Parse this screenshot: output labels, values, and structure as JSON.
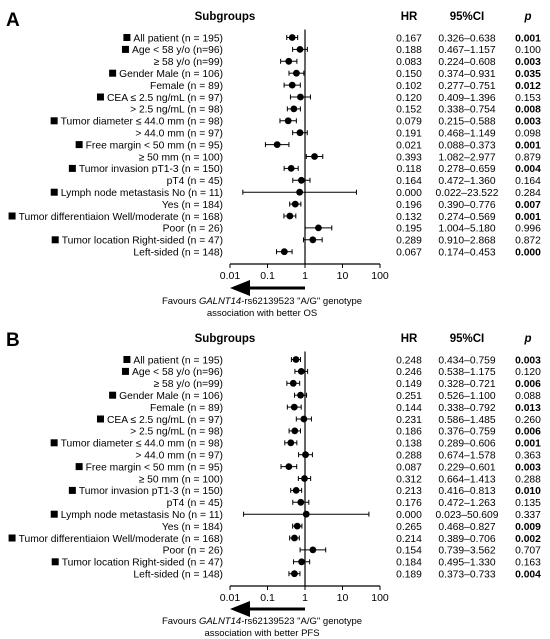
{
  "panels": [
    {
      "letter": "A",
      "header": {
        "subgroups": "Subgroups",
        "hr": "HR",
        "ci": "95%CI",
        "p": "p"
      },
      "favours_line1_prefix": "Favours ",
      "favours_gene": "GALNT14",
      "favours_line1_suffix": "-rs62139523  \"A/G\" genotype",
      "favours_line2": "association with better OS"
    },
    {
      "letter": "B",
      "header": {
        "subgroups": "Subgroups",
        "hr": "HR",
        "ci": "95%CI",
        "p": "p"
      },
      "favours_line1_prefix": "Favours ",
      "favours_gene": "GALNT14",
      "favours_line1_suffix": "-rs62139523  \"A/G\" genotype",
      "favours_line2": "association with better PFS"
    }
  ],
  "chart_data": [
    {
      "type": "forest",
      "xscale": "log",
      "xlim": [
        0.01,
        100
      ],
      "xticks": [
        "0.01",
        "0.1",
        "1",
        "10",
        "100"
      ],
      "reference_line": 1,
      "rows": [
        {
          "label": "All patient (n = 195)",
          "header": true,
          "hr": 0.167,
          "lo": 0.326,
          "hi": 0.638,
          "hr_text": "0.167",
          "ci_text": "0.326–0.638",
          "p": "0.001",
          "bold": true
        },
        {
          "label": "Age < 58 y/o (n=96)",
          "header": true,
          "hr": 0.188,
          "lo": 0.467,
          "hi": 1.157,
          "hr_text": "0.188",
          "ci_text": "0.467–1.157",
          "p": "0.100",
          "bold": false
        },
        {
          "label": "≥ 58 y/o (n=99)",
          "header": false,
          "hr": 0.083,
          "lo": 0.224,
          "hi": 0.608,
          "hr_text": "0.083",
          "ci_text": "0.224–0.608",
          "p": "0.003",
          "bold": true
        },
        {
          "label": "Gender Male (n = 106)",
          "header": true,
          "hr": 0.15,
          "lo": 0.374,
          "hi": 0.931,
          "hr_text": "0.150",
          "ci_text": "0.374–0.931",
          "p": "0.035",
          "bold": true
        },
        {
          "label": "Female (n = 89)",
          "header": false,
          "hr": 0.102,
          "lo": 0.277,
          "hi": 0.751,
          "hr_text": "0.102",
          "ci_text": "0.277–0.751",
          "p": "0.012",
          "bold": true
        },
        {
          "label": "CEA ≤ 2.5 ng/mL (n = 97)",
          "header": true,
          "hr": 0.12,
          "lo": 0.409,
          "hi": 1.396,
          "hr_text": "0.120",
          "ci_text": "0.409–1.396",
          "p": "0.153",
          "bold": false
        },
        {
          "label": "> 2.5 ng/mL (n = 98)",
          "header": false,
          "hr": 0.152,
          "lo": 0.338,
          "hi": 0.754,
          "hr_text": "0.152",
          "ci_text": "0.338–0.754",
          "p": "0.008",
          "bold": true
        },
        {
          "label": "Tumor diameter ≤ 44.0 mm (n = 98)",
          "header": true,
          "hr": 0.079,
          "lo": 0.215,
          "hi": 0.588,
          "hr_text": "0.079",
          "ci_text": "0.215–0.588",
          "p": "0.003",
          "bold": true
        },
        {
          "label": "> 44.0 mm (n = 97)",
          "header": false,
          "hr": 0.191,
          "lo": 0.468,
          "hi": 1.149,
          "hr_text": "0.191",
          "ci_text": "0.468–1.149",
          "p": "0.098",
          "bold": false
        },
        {
          "label": "Free margin < 50 mm (n = 95)",
          "header": true,
          "hr": 0.021,
          "lo": 0.088,
          "hi": 0.373,
          "hr_text": "0.021",
          "ci_text": "0.088–0.373",
          "p": "0.001",
          "bold": true
        },
        {
          "label": "≥ 50 mm (n = 100)",
          "header": false,
          "hr": 0.393,
          "lo": 1.082,
          "hi": 2.977,
          "hr_text": "0.393",
          "ci_text": "1.082–2.977",
          "p": "0.879",
          "bold": false
        },
        {
          "label": "Tumor invasion pT1-3 (n = 150)",
          "header": true,
          "hr": 0.118,
          "lo": 0.278,
          "hi": 0.659,
          "hr_text": "0.118",
          "ci_text": "0.278–0.659",
          "p": "0.004",
          "bold": true
        },
        {
          "label": "pT4 (n = 45)",
          "header": false,
          "hr": 0.164,
          "lo": 0.472,
          "hi": 1.36,
          "hr_text": "0.164",
          "ci_text": "0.472–1.360",
          "p": "0.164",
          "bold": false
        },
        {
          "label": "Lymph node metastasis No (n = 11)",
          "header": true,
          "hr": 0.0,
          "lo": 0.022,
          "hi": 23.522,
          "hr_text": "0.000",
          "ci_text": "0.022–23.522",
          "p": "0.284",
          "bold": false
        },
        {
          "label": "Yes (n = 184)",
          "header": false,
          "hr": 0.196,
          "lo": 0.39,
          "hi": 0.776,
          "hr_text": "0.196",
          "ci_text": "0.390–0.776",
          "p": "0.007",
          "bold": true
        },
        {
          "label": "Tumor differentiaion Well/moderate (n = 168)",
          "header": true,
          "hr": 0.132,
          "lo": 0.274,
          "hi": 0.569,
          "hr_text": "0.132",
          "ci_text": "0.274–0.569",
          "p": "0.001",
          "bold": true
        },
        {
          "label": "Poor (n = 26)",
          "header": false,
          "hr": 0.195,
          "lo": 1.004,
          "hi": 5.18,
          "hr_text": "0.195",
          "ci_text": "1.004–5.180",
          "p": "0.996",
          "bold": false
        },
        {
          "label": "Tumor location Right-sided (n = 47)",
          "header": true,
          "hr": 0.289,
          "lo": 0.91,
          "hi": 2.868,
          "hr_text": "0.289",
          "ci_text": "0.910–2.868",
          "p": "0.872",
          "bold": false
        },
        {
          "label": "Left-sided (n = 148)",
          "header": false,
          "hr": 0.067,
          "lo": 0.174,
          "hi": 0.453,
          "hr_text": "0.067",
          "ci_text": "0.174–0.453",
          "p": "0.000",
          "bold": true
        }
      ]
    },
    {
      "type": "forest",
      "xscale": "log",
      "xlim": [
        0.01,
        100
      ],
      "xticks": [
        "0.01",
        "0.1",
        "1",
        "10",
        "100"
      ],
      "reference_line": 1,
      "rows": [
        {
          "label": "All patient (n = 195)",
          "header": true,
          "hr": 0.248,
          "lo": 0.434,
          "hi": 0.759,
          "hr_text": "0.248",
          "ci_text": "0.434–0.759",
          "p": "0.003",
          "bold": true
        },
        {
          "label": "Age < 58 y/o (n=96)",
          "header": true,
          "hr": 0.246,
          "lo": 0.538,
          "hi": 1.175,
          "hr_text": "0.246",
          "ci_text": "0.538–1.175",
          "p": "0.120",
          "bold": false
        },
        {
          "label": "≥ 58 y/o (n=99)",
          "header": false,
          "hr": 0.149,
          "lo": 0.328,
          "hi": 0.721,
          "hr_text": "0.149",
          "ci_text": "0.328–0.721",
          "p": "0.006",
          "bold": true
        },
        {
          "label": "Gender Male (n = 106)",
          "header": true,
          "hr": 0.251,
          "lo": 0.526,
          "hi": 1.1,
          "hr_text": "0.251",
          "ci_text": "0.526–1.100",
          "p": "0.088",
          "bold": false
        },
        {
          "label": "Female (n = 89)",
          "header": false,
          "hr": 0.144,
          "lo": 0.338,
          "hi": 0.792,
          "hr_text": "0.144",
          "ci_text": "0.338–0.792",
          "p": "0.013",
          "bold": true
        },
        {
          "label": "CEA ≤ 2.5 ng/mL (n = 97)",
          "header": true,
          "hr": 0.231,
          "lo": 0.586,
          "hi": 1.485,
          "hr_text": "0.231",
          "ci_text": "0.586–1.485",
          "p": "0.260",
          "bold": false
        },
        {
          "label": "> 2.5 ng/mL (n = 98)",
          "header": false,
          "hr": 0.186,
          "lo": 0.376,
          "hi": 0.759,
          "hr_text": "0.186",
          "ci_text": "0.376–0.759",
          "p": "0.006",
          "bold": true
        },
        {
          "label": "Tumor diameter ≤ 44.0 mm (n = 98)",
          "header": true,
          "hr": 0.138,
          "lo": 0.289,
          "hi": 0.606,
          "hr_text": "0.138",
          "ci_text": "0.289–0.606",
          "p": "0.001",
          "bold": true
        },
        {
          "label": "> 44.0 mm (n = 97)",
          "header": false,
          "hr": 0.288,
          "lo": 0.674,
          "hi": 1.578,
          "hr_text": "0.288",
          "ci_text": "0.674–1.578",
          "p": "0.363",
          "bold": false
        },
        {
          "label": "Free margin < 50 mm (n = 95)",
          "header": true,
          "hr": 0.087,
          "lo": 0.229,
          "hi": 0.601,
          "hr_text": "0.087",
          "ci_text": "0.229–0.601",
          "p": "0.003",
          "bold": true
        },
        {
          "label": "≥ 50 mm (n = 100)",
          "header": false,
          "hr": 0.312,
          "lo": 0.664,
          "hi": 1.413,
          "hr_text": "0.312",
          "ci_text": "0.664–1.413",
          "p": "0.288",
          "bold": false
        },
        {
          "label": "Tumor invasion pT1-3 (n = 150)",
          "header": true,
          "hr": 0.213,
          "lo": 0.416,
          "hi": 0.813,
          "hr_text": "0.213",
          "ci_text": "0.416–0.813",
          "p": "0.010",
          "bold": true
        },
        {
          "label": "pT4 (n = 45)",
          "header": false,
          "hr": 0.176,
          "lo": 0.472,
          "hi": 1.263,
          "hr_text": "0.176",
          "ci_text": "0.472–1.263",
          "p": "0.135",
          "bold": false
        },
        {
          "label": "Lymph node metastasis No (n = 11)",
          "header": true,
          "hr": 0.0,
          "lo": 0.023,
          "hi": 50.609,
          "hr_text": "0.000",
          "ci_text": "0.023–50.609",
          "p": "0.337",
          "bold": false
        },
        {
          "label": "Yes (n = 184)",
          "header": false,
          "hr": 0.265,
          "lo": 0.468,
          "hi": 0.827,
          "hr_text": "0.265",
          "ci_text": "0.468–0.827",
          "p": "0.009",
          "bold": true
        },
        {
          "label": "Tumor differentiaion Well/moderate (n = 168)",
          "header": true,
          "hr": 0.214,
          "lo": 0.389,
          "hi": 0.706,
          "hr_text": "0.214",
          "ci_text": "0.389–0.706",
          "p": "0.002",
          "bold": true
        },
        {
          "label": "Poor (n = 26)",
          "header": false,
          "hr": 0.154,
          "lo": 0.739,
          "hi": 3.562,
          "hr_text": "0.154",
          "ci_text": "0.739–3.562",
          "p": "0.707",
          "bold": false
        },
        {
          "label": "Tumor location Right-sided (n = 47)",
          "header": true,
          "hr": 0.184,
          "lo": 0.495,
          "hi": 1.33,
          "hr_text": "0.184",
          "ci_text": "0.495–1.330",
          "p": "0.163",
          "bold": false
        },
        {
          "label": "Left-sided (n = 148)",
          "header": false,
          "hr": 0.189,
          "lo": 0.373,
          "hi": 0.733,
          "hr_text": "0.189",
          "ci_text": "0.373–0.733",
          "p": "0.004",
          "bold": true
        }
      ]
    }
  ]
}
